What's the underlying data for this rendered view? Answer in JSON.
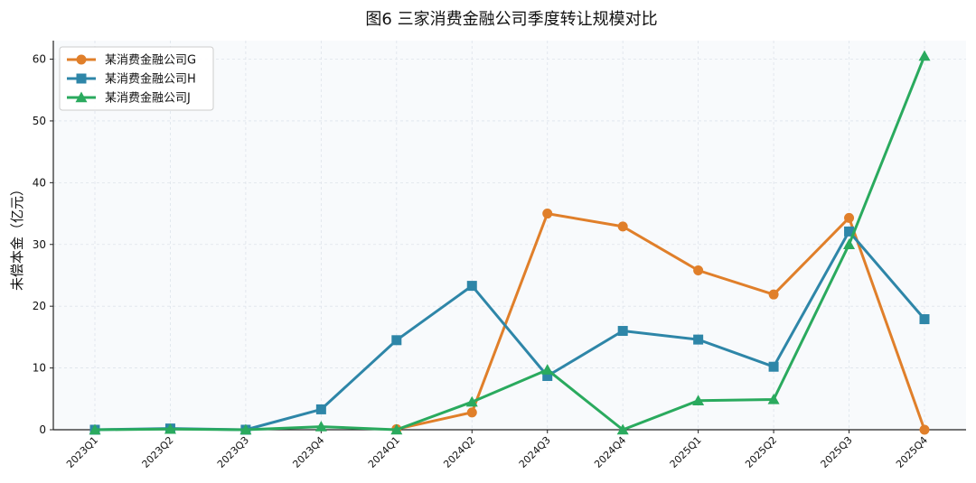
{
  "chart_data": {
    "type": "line",
    "title": "图6   三家消费金融公司季度转让规模对比",
    "xlabel": "",
    "ylabel": "未偿本金（亿元）",
    "ylim": [
      0,
      63
    ],
    "yticks": [
      0,
      10,
      20,
      30,
      40,
      50,
      60
    ],
    "grid": true,
    "legend_position": "top-left",
    "categories": [
      "2023Q1",
      "2023Q2",
      "2023Q3",
      "2023Q4",
      "2024Q1",
      "2024Q2",
      "2024Q3",
      "2024Q4",
      "2025Q1",
      "2025Q2",
      "2025Q3",
      "2025Q4"
    ],
    "series": [
      {
        "name": "某消费金融公司G",
        "color": "#e07f2a",
        "marker": "circle",
        "values": [
          null,
          null,
          null,
          null,
          0.1,
          2.8,
          35.0,
          32.9,
          25.8,
          21.9,
          34.3,
          0
        ]
      },
      {
        "name": "某消费金融公司H",
        "color": "#2e86a8",
        "marker": "square",
        "values": [
          0,
          0.2,
          0,
          3.3,
          14.5,
          23.3,
          8.7,
          16.0,
          14.6,
          10.2,
          32.1,
          17.9
        ]
      },
      {
        "name": "某消费金融公司J",
        "color": "#2aaa5e",
        "marker": "triangle",
        "values": [
          0,
          0.1,
          0,
          0.5,
          0,
          4.5,
          9.7,
          0,
          4.7,
          4.9,
          30.0,
          60.5
        ]
      }
    ]
  }
}
